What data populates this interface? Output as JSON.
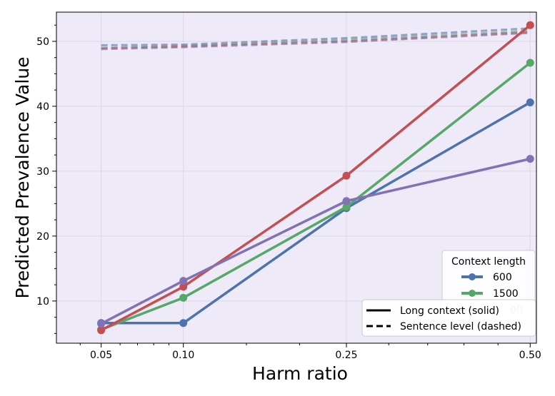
{
  "chart_data": {
    "type": "line",
    "xlabel": "Harm ratio",
    "ylabel": "Predicted Prevalence Value",
    "x_scale": "sqrt",
    "xlim": [
      0.03,
      0.51
    ],
    "ylim": [
      3.5,
      54.5
    ],
    "x_ticks": [
      0.05,
      0.1,
      0.25,
      0.5
    ],
    "x_tick_labels": [
      "0.05",
      "0.10",
      "0.25",
      "0.50"
    ],
    "y_ticks": [
      10,
      20,
      30,
      40,
      50
    ],
    "y_tick_labels": [
      "10",
      "20",
      "30",
      "40",
      "50"
    ],
    "grid": true,
    "x": [
      0.05,
      0.1,
      0.25,
      0.5
    ],
    "series": [
      {
        "name": "600",
        "style": "solid",
        "color": "#4c72b0",
        "values": [
          6.6,
          6.6,
          24.3,
          40.6
        ]
      },
      {
        "name": "1500",
        "style": "solid",
        "color": "#55a868",
        "values": [
          5.6,
          10.5,
          24.5,
          46.7
        ]
      },
      {
        "name": "",
        "style": "solid",
        "color": "#c44e52",
        "values": [
          5.5,
          12.2,
          29.3,
          52.5
        ]
      },
      {
        "name": "",
        "style": "solid",
        "color": "#8172b3",
        "values": [
          6.5,
          13.1,
          25.4,
          31.9
        ]
      },
      {
        "name": "",
        "style": "dashed",
        "color": "#4c72b0",
        "values": [
          49.4,
          49.5,
          50.5,
          52.0
        ]
      },
      {
        "name": "",
        "style": "dashed",
        "color": "#55a868",
        "values": [
          49.0,
          49.3,
          50.2,
          51.6
        ]
      },
      {
        "name": "",
        "style": "dashed",
        "color": "#c44e52",
        "values": [
          48.9,
          49.2,
          50.0,
          51.4
        ]
      },
      {
        "name": "",
        "style": "dashed",
        "color": "#8172b3",
        "values": [
          48.8,
          49.1,
          49.9,
          51.3
        ]
      }
    ],
    "legend_context": {
      "title": "Context length",
      "entries": [
        {
          "label": "600",
          "color": "#4c72b0"
        },
        {
          "label": "1500",
          "color": "#55a868"
        }
      ],
      "partial_label": "00",
      "placement": "right"
    },
    "legend_style": {
      "entries": [
        {
          "label": "Long context (solid)",
          "style": "solid"
        },
        {
          "label": "Sentence level (dashed)",
          "style": "dashed"
        }
      ],
      "placement": "bottom-right"
    },
    "colors": {
      "plot_bg": "#efeaf7",
      "grid": "#dcd7e6"
    }
  }
}
